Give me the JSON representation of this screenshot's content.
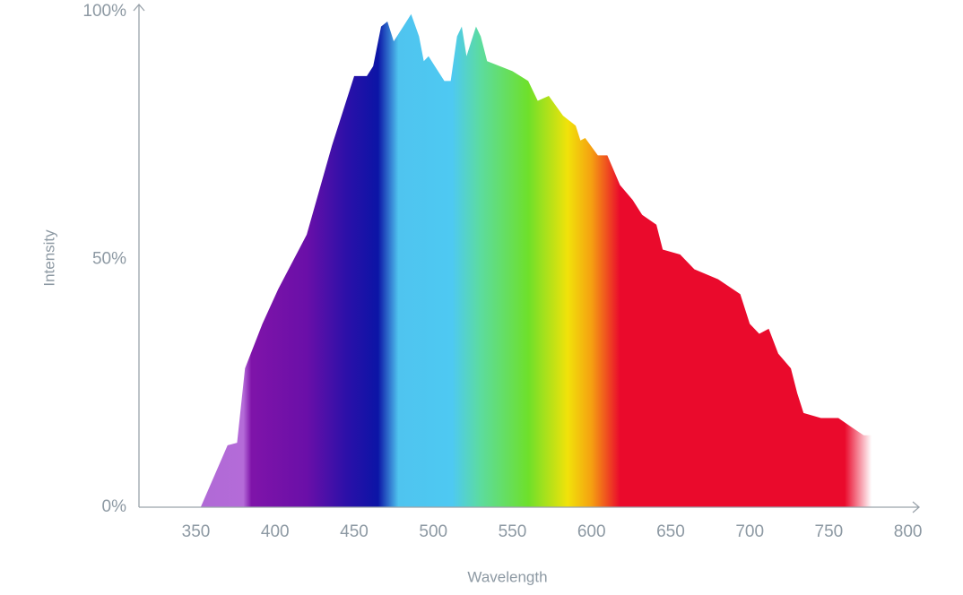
{
  "chart_data": {
    "type": "area",
    "x_label": "Wavelength",
    "y_label": "Intensity",
    "x": [
      353,
      370,
      376,
      381,
      392,
      402,
      420,
      436,
      450,
      458,
      462,
      467,
      471,
      475,
      481,
      486,
      491,
      494,
      497,
      501,
      507,
      511,
      515,
      518,
      521,
      524,
      527,
      530,
      534,
      550,
      560,
      566,
      573,
      582,
      590,
      593,
      596,
      604,
      610,
      618,
      626,
      632,
      641,
      645,
      656,
      665,
      680,
      694,
      700,
      706,
      712,
      718,
      726,
      730,
      734,
      745,
      756,
      765,
      772,
      777
    ],
    "values": [
      0,
      12.5,
      13,
      28,
      37,
      44,
      55,
      73,
      87,
      87,
      89,
      97,
      98,
      94,
      97,
      99.5,
      95,
      90,
      91,
      89,
      86,
      86,
      95,
      97,
      91,
      94,
      97,
      95,
      90,
      88,
      86,
      82,
      83,
      79,
      77,
      74,
      74.5,
      71,
      71,
      65,
      62,
      59,
      57,
      52,
      51,
      48,
      46,
      43,
      37,
      35,
      36,
      31,
      28,
      23,
      19,
      18,
      18,
      16,
      14.5,
      14.5
    ],
    "xlim": [
      314,
      807
    ],
    "ylim": [
      0,
      100
    ],
    "xticks": [
      350,
      400,
      450,
      500,
      550,
      600,
      650,
      700,
      750,
      800
    ],
    "yticks": [
      {
        "value": 0,
        "label": "0%"
      },
      {
        "value": 50,
        "label": "50%"
      },
      {
        "value": 100,
        "label": "100%"
      }
    ],
    "grid": false,
    "gradient": [
      {
        "x": 353,
        "color": "#b06ad6"
      },
      {
        "x": 380,
        "color": "#b46bd8"
      },
      {
        "x": 385,
        "color": "#7f14a9"
      },
      {
        "x": 420,
        "color": "#6a0fa8"
      },
      {
        "x": 445,
        "color": "#2c10a8"
      },
      {
        "x": 465,
        "color": "#0b14a6"
      },
      {
        "x": 478,
        "color": "#4fc4ef"
      },
      {
        "x": 512,
        "color": "#4ec9f2"
      },
      {
        "x": 530,
        "color": "#5cdc9e"
      },
      {
        "x": 560,
        "color": "#6ee02a"
      },
      {
        "x": 585,
        "color": "#f1e20a"
      },
      {
        "x": 600,
        "color": "#f5a011"
      },
      {
        "x": 618,
        "color": "#ea0a2c"
      },
      {
        "x": 760,
        "color": "#ea0a2c"
      },
      {
        "x": 777,
        "color": "#ffffff"
      }
    ]
  }
}
